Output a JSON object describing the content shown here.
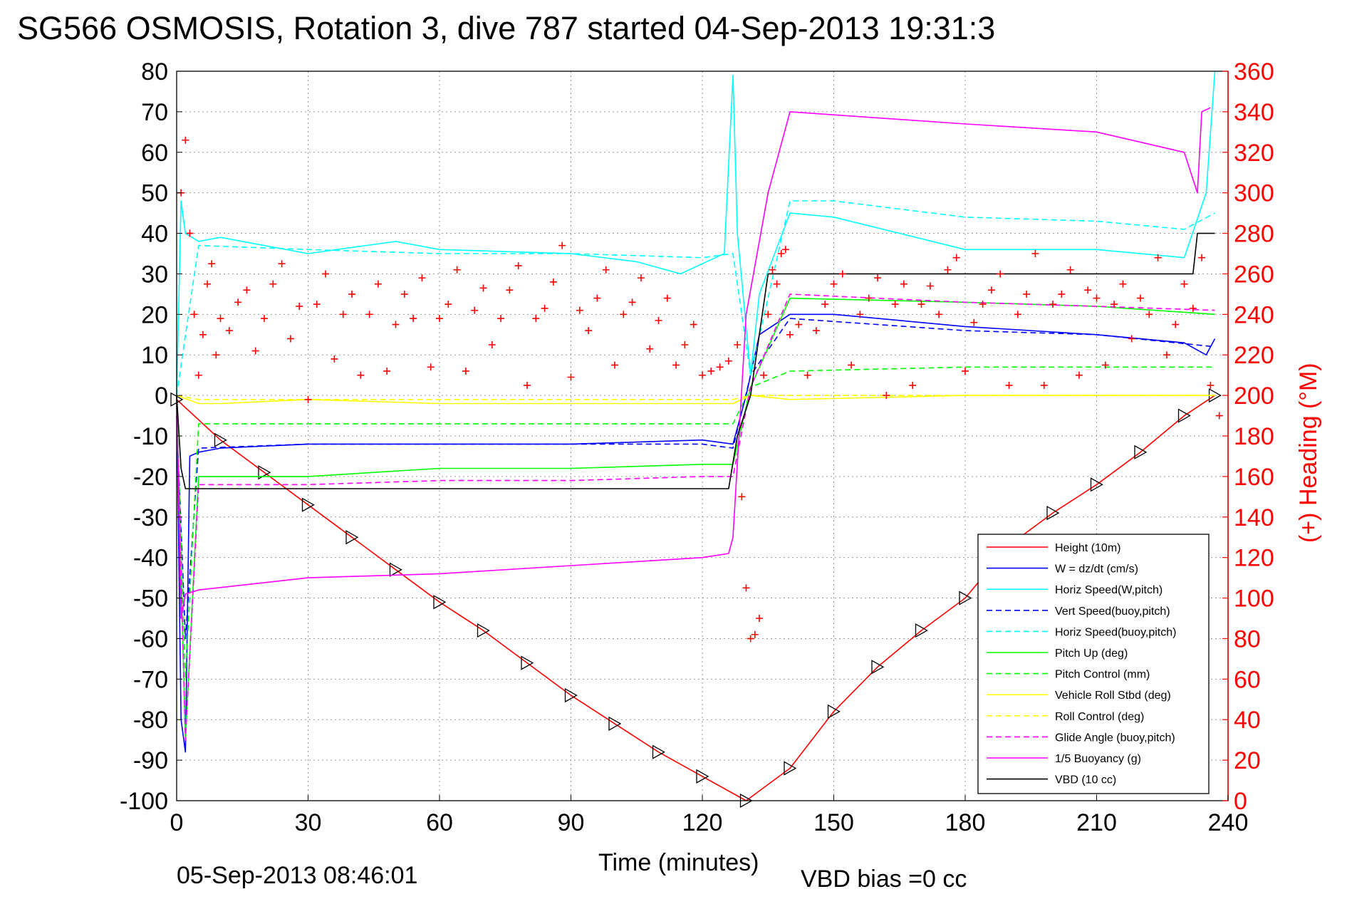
{
  "chart_data": {
    "type": "line",
    "title": "SG566 OSMOSIS, Rotation 3, dive 787 started 04-Sep-2013 19:31:3",
    "xlabel": "Time (minutes)",
    "ylabel_right": "(+) Heading (°M)",
    "x_ticks": [
      "0",
      "30",
      "60",
      "90",
      "120",
      "150",
      "180",
      "210",
      "240"
    ],
    "y_ticks": [
      "80",
      "70",
      "60",
      "50",
      "40",
      "30",
      "20",
      "10",
      "0",
      "-10",
      "-20",
      "-30",
      "-40",
      "-50",
      "-60",
      "-70",
      "-80",
      "-90",
      "-100"
    ],
    "y2_ticks": [
      "360",
      "340",
      "320",
      "300",
      "280",
      "260",
      "240",
      "220",
      "200",
      "180",
      "160",
      "140",
      "120",
      "100",
      "80",
      "60",
      "40",
      "20",
      "0"
    ],
    "xlim": [
      0,
      240
    ],
    "ylim": [
      -100,
      80
    ],
    "y2lim": [
      0,
      360
    ],
    "grid": true,
    "legend_position": "bottom-right",
    "footer_date": "05-Sep-2013 08:46:01",
    "footer_bias": "VBD bias =0 cc",
    "series": [
      {
        "name": "Height (10m)",
        "color": "#ff0000",
        "style": "solid",
        "markers": "triangle",
        "x": [
          0,
          10,
          20,
          30,
          40,
          50,
          60,
          70,
          80,
          90,
          100,
          110,
          120,
          130,
          140,
          150,
          160,
          170,
          180,
          190,
          200,
          210,
          220,
          230,
          237
        ],
        "y": [
          -1,
          -11,
          -19,
          -27,
          -35,
          -43,
          -51,
          -58,
          -66,
          -74,
          -81,
          -88,
          -94,
          -100,
          -92,
          -78,
          -67,
          -58,
          -50,
          -37,
          -29,
          -22,
          -14,
          -5,
          0
        ]
      },
      {
        "name": "W = dz/dt (cm/s)",
        "color": "#0000ff",
        "style": "solid",
        "x": [
          0,
          1,
          2,
          3,
          5,
          10,
          30,
          60,
          90,
          120,
          127,
          130,
          133,
          140,
          150,
          180,
          210,
          230,
          235,
          237
        ],
        "y": [
          0,
          -80,
          -88,
          -15,
          -14,
          -13,
          -12,
          -12,
          -12,
          -11,
          -12,
          0,
          15,
          20,
          20,
          17,
          15,
          13,
          10,
          14
        ]
      },
      {
        "name": "Horiz Speed(W,pitch)",
        "color": "#00ffff",
        "style": "solid",
        "x": [
          0,
          1,
          2,
          5,
          10,
          30,
          50,
          60,
          90,
          105,
          115,
          125,
          127,
          128,
          131,
          133,
          140,
          150,
          180,
          210,
          230,
          235,
          237
        ],
        "y": [
          0,
          48,
          40,
          38,
          39,
          35,
          38,
          36,
          35,
          33,
          30,
          35,
          79,
          40,
          5,
          25,
          45,
          44,
          36,
          36,
          34,
          50,
          80
        ]
      },
      {
        "name": "Vert Speed(buoy,pitch)",
        "color": "#0000ff",
        "style": "dashed",
        "x": [
          0,
          2,
          5,
          30,
          60,
          90,
          120,
          127,
          131,
          140,
          180,
          210,
          237
        ],
        "y": [
          -5,
          -60,
          -13,
          -12,
          -12,
          -12,
          -12,
          -13,
          5,
          19,
          16,
          15,
          12
        ]
      },
      {
        "name": "Horiz Speed(buoy,pitch)",
        "color": "#00ffff",
        "style": "dashed",
        "x": [
          0,
          5,
          30,
          60,
          90,
          120,
          127,
          131,
          140,
          150,
          180,
          210,
          230,
          237
        ],
        "y": [
          0,
          37,
          36,
          35,
          35,
          34,
          35,
          5,
          48,
          48,
          44,
          43,
          41,
          45
        ]
      },
      {
        "name": "Pitch Up (deg)",
        "color": "#00ff00",
        "style": "solid",
        "x": [
          0,
          2,
          5,
          30,
          60,
          90,
          120,
          127,
          131,
          140,
          180,
          210,
          237
        ],
        "y": [
          -2,
          -85,
          -20,
          -20,
          -18,
          -18,
          -17,
          -17,
          2,
          24,
          23,
          22,
          20
        ]
      },
      {
        "name": "Pitch Control (mm)",
        "color": "#00ff00",
        "style": "dashed",
        "x": [
          0,
          2,
          5,
          30,
          60,
          90,
          120,
          127,
          131,
          140,
          180,
          210,
          237
        ],
        "y": [
          -2,
          -70,
          -7,
          -7,
          -7,
          -7,
          -7,
          -7,
          2,
          6,
          7,
          7,
          7
        ]
      },
      {
        "name": "Vehicle Roll Stbd (deg)",
        "color": "#ffff00",
        "style": "solid",
        "x": [
          0,
          5,
          10,
          30,
          60,
          90,
          120,
          127,
          131,
          140,
          180,
          210,
          237
        ],
        "y": [
          0,
          -2,
          -2,
          -1,
          -2,
          -2,
          -2,
          -2,
          0,
          -1,
          0,
          0,
          0
        ]
      },
      {
        "name": "Roll Control (deg)",
        "color": "#ffff00",
        "style": "dashed",
        "x": [
          0,
          5,
          30,
          60,
          90,
          120,
          127,
          131,
          140,
          180,
          210,
          237
        ],
        "y": [
          0,
          -1,
          -1,
          -1,
          -1,
          -1,
          -1,
          0,
          0,
          0,
          0,
          0
        ]
      },
      {
        "name": "Glide Angle (buoy,pitch)",
        "color": "#ff00ff",
        "style": "dashed",
        "x": [
          0,
          2,
          5,
          30,
          60,
          90,
          120,
          127,
          131,
          140,
          180,
          210,
          237
        ],
        "y": [
          -2,
          -85,
          -22,
          -22,
          -21,
          -21,
          -20,
          -20,
          2,
          25,
          23,
          22,
          21
        ]
      },
      {
        "name": "1/5 Buoyancy (g)",
        "color": "#ff00ff",
        "style": "solid",
        "x": [
          0,
          1,
          2,
          5,
          30,
          60,
          90,
          120,
          126,
          127,
          130,
          135,
          140,
          180,
          210,
          230,
          233,
          234,
          236
        ],
        "y": [
          0,
          -55,
          -49,
          -48,
          -45,
          -44,
          -42,
          -40,
          -39,
          -35,
          20,
          50,
          70,
          67,
          65,
          60,
          50,
          70,
          71
        ]
      },
      {
        "name": "VBD (10 cc)",
        "color": "#000000",
        "style": "solid",
        "x": [
          0,
          1,
          2,
          10,
          60,
          120,
          126,
          128,
          131,
          135,
          140,
          180,
          210,
          232,
          233,
          237
        ],
        "y": [
          0,
          -18,
          -23,
          -23,
          -23,
          -23,
          -23,
          -10,
          0,
          30,
          30,
          30,
          30,
          30,
          40,
          40
        ]
      }
    ],
    "heading_points": {
      "name": "(+) Heading (°M)",
      "color": "#ff0000",
      "marker": "+",
      "x": [
        1,
        2,
        3,
        4,
        5,
        6,
        7,
        8,
        9,
        10,
        12,
        14,
        16,
        18,
        20,
        22,
        24,
        26,
        28,
        30,
        32,
        34,
        36,
        38,
        40,
        42,
        44,
        46,
        48,
        50,
        52,
        54,
        56,
        58,
        60,
        62,
        64,
        66,
        68,
        70,
        72,
        74,
        76,
        78,
        80,
        82,
        84,
        86,
        88,
        90,
        92,
        94,
        96,
        98,
        100,
        102,
        104,
        106,
        108,
        110,
        112,
        114,
        116,
        118,
        120,
        122,
        124,
        126,
        128,
        129,
        130,
        131,
        132,
        133,
        134,
        135,
        136,
        137,
        138,
        139,
        140,
        142,
        144,
        146,
        148,
        150,
        152,
        154,
        156,
        158,
        160,
        162,
        164,
        166,
        168,
        170,
        172,
        174,
        176,
        178,
        180,
        182,
        184,
        186,
        188,
        190,
        192,
        194,
        196,
        198,
        200,
        202,
        204,
        206,
        208,
        210,
        212,
        214,
        216,
        218,
        220,
        222,
        224,
        226,
        228,
        230,
        232,
        234,
        236,
        238
      ],
      "y": [
        300,
        326,
        280,
        240,
        210,
        230,
        255,
        265,
        220,
        238,
        232,
        246,
        252,
        222,
        238,
        255,
        265,
        228,
        244,
        198,
        245,
        260,
        218,
        240,
        250,
        210,
        240,
        255,
        212,
        235,
        250,
        238,
        258,
        214,
        238,
        245,
        262,
        212,
        242,
        253,
        225,
        238,
        252,
        264,
        205,
        238,
        243,
        256,
        274,
        209,
        242,
        232,
        248,
        262,
        215,
        240,
        246,
        258,
        223,
        237,
        248,
        215,
        225,
        235,
        210,
        212,
        214,
        217,
        225,
        150,
        105,
        80,
        82,
        90,
        210,
        240,
        262,
        255,
        270,
        272,
        230,
        235,
        210,
        232,
        245,
        255,
        260,
        215,
        240,
        248,
        258,
        200,
        245,
        255,
        205,
        245,
        254,
        240,
        262,
        268,
        212,
        236,
        245,
        252,
        260,
        205,
        240,
        250,
        270,
        205,
        245,
        250,
        262,
        210,
        252,
        248,
        215,
        245,
        255,
        228,
        248,
        240,
        268,
        220,
        235,
        255,
        243,
        268,
        205,
        190
      ]
    }
  }
}
